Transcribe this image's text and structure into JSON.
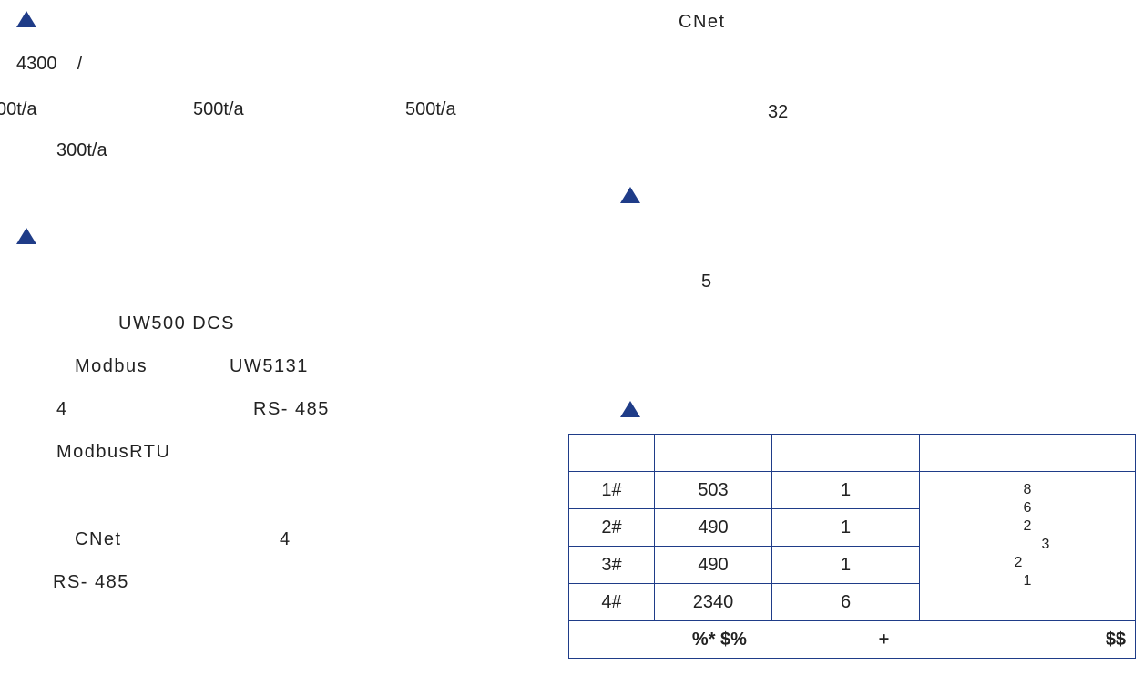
{
  "left": {
    "line1": "4300    /",
    "r1": "00t/a",
    "r2": "500t/a",
    "r3": "500t/a",
    "line3": "300t/a",
    "line4": "UW500 DCS",
    "line5a": "Modbus",
    "line5b": "UW5131",
    "line6a": "4",
    "line6b": "RS- 485",
    "line7": "ModbusRTU",
    "line8a": "CNet",
    "line8b": "4",
    "line9": "RS- 485"
  },
  "right": {
    "title": "CNet",
    "num1": "32",
    "num2": "5"
  },
  "table": {
    "rows": [
      {
        "id": "1#",
        "value": "503",
        "count": "1"
      },
      {
        "id": "2#",
        "value": "490",
        "count": "1"
      },
      {
        "id": "3#",
        "value": "490",
        "count": "1"
      },
      {
        "id": "4#",
        "value": "2340",
        "count": "6"
      }
    ],
    "notes": [
      "8",
      "6",
      "2",
      "3",
      "2",
      "1"
    ],
    "footer": [
      "%* $%",
      "+",
      "$$"
    ]
  },
  "colors": {
    "accent": "#1f3c88"
  }
}
